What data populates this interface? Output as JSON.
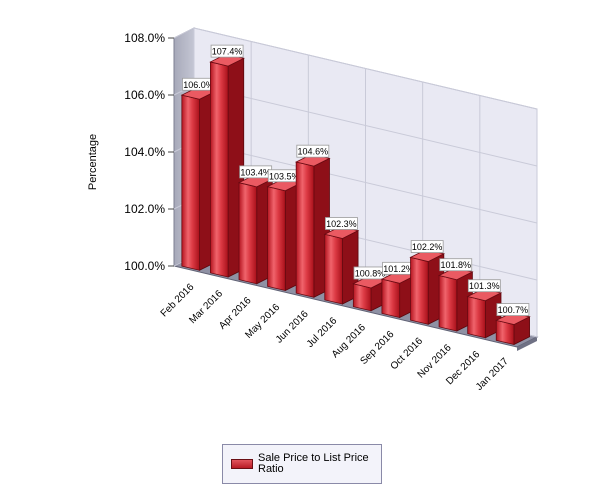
{
  "chart_data": {
    "type": "bar",
    "title": "",
    "xlabel": "",
    "ylabel": "Percentage",
    "ylim": [
      100,
      108
    ],
    "yticks": [
      "100.0%",
      "102.0%",
      "104.0%",
      "106.0%",
      "108.0%"
    ],
    "ytick_values": [
      100,
      102,
      104,
      106,
      108
    ],
    "grid": true,
    "legend_position": "bottom",
    "categories": [
      "Feb 2016",
      "Mar 2016",
      "Apr 2016",
      "May 2016",
      "Jun 2016",
      "Jul 2016",
      "Aug 2016",
      "Sep 2016",
      "Oct 2016",
      "Nov 2016",
      "Dec 2016",
      "Jan 2017"
    ],
    "series": [
      {
        "name": "Sale Price to List Price Ratio",
        "values": [
          106.0,
          107.4,
          103.4,
          103.5,
          104.6,
          102.3,
          100.8,
          101.2,
          102.2,
          101.8,
          101.3,
          100.7
        ],
        "labels": [
          "106.0%",
          "107.4%",
          "103.4%",
          "103.5%",
          "104.6%",
          "102.3%",
          "100.8%",
          "101.2%",
          "102.2%",
          "101.8%",
          "101.3%",
          "100.7%"
        ],
        "color": "#d42a35"
      }
    ]
  }
}
